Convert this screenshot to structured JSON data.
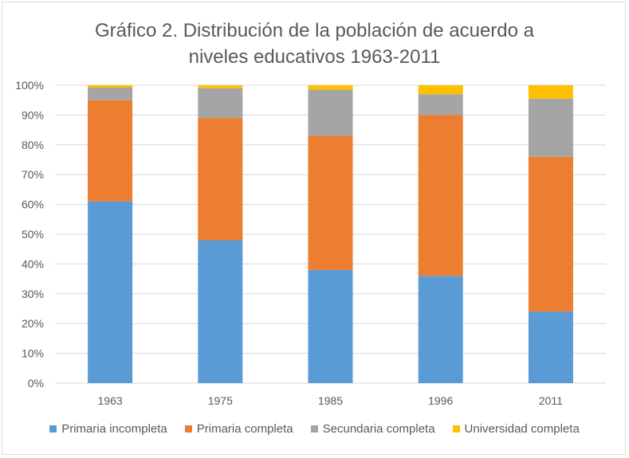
{
  "chart_data": {
    "type": "bar",
    "stacked": true,
    "title_line1": "Gráfico 2. Distribución de la población de acuerdo a",
    "title_line2": "niveles educativos 1963-2011",
    "categories": [
      "1963",
      "1975",
      "1985",
      "1996",
      "2011"
    ],
    "ylim": [
      0,
      100
    ],
    "yticks": [
      "0%",
      "10%",
      "20%",
      "30%",
      "40%",
      "50%",
      "60%",
      "70%",
      "80%",
      "90%",
      "100%"
    ],
    "grid": true,
    "legend_position": "bottom",
    "series": [
      {
        "name": "Primaria incompleta",
        "color": "#5b9bd5",
        "values": [
          61,
          48,
          38,
          36,
          24
        ]
      },
      {
        "name": "Primaria completa",
        "color": "#ed7d31",
        "values": [
          34,
          41,
          45,
          54,
          52
        ]
      },
      {
        "name": "Secundaria completa",
        "color": "#a5a5a5",
        "values": [
          4.2,
          10,
          15.5,
          7,
          19.5
        ]
      },
      {
        "name": "Universidad completa",
        "color": "#ffc000",
        "values": [
          0.8,
          1,
          1.5,
          3,
          4.5
        ]
      }
    ]
  }
}
